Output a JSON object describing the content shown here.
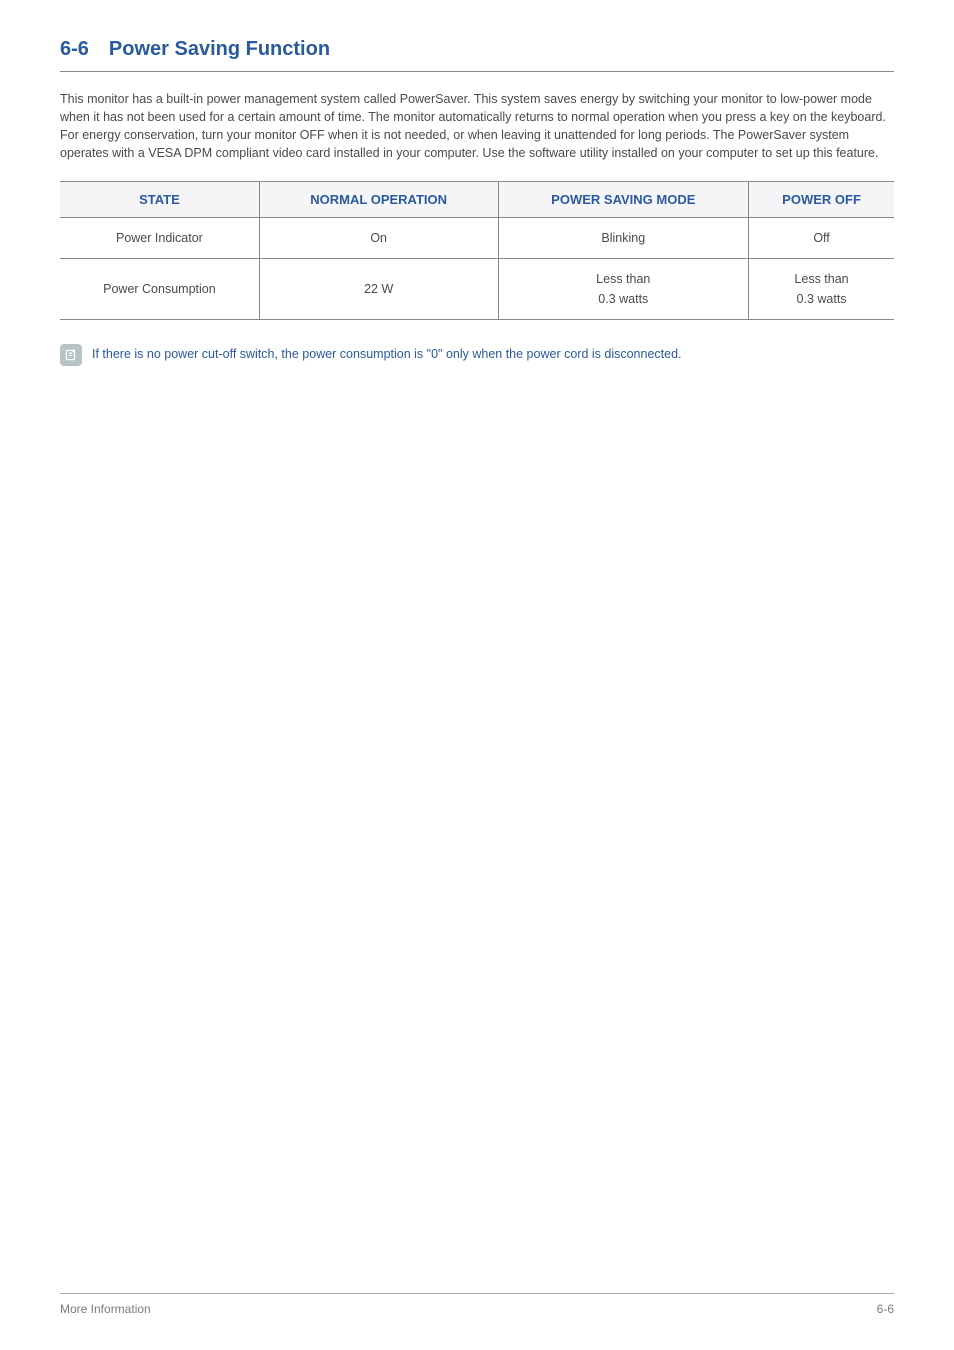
{
  "heading": {
    "number": "6-6",
    "title": "Power Saving Function"
  },
  "paragraph": "This monitor has a built-in power management system called PowerSaver. This system saves energy by switching your monitor to low-power mode when it has not been used for a certain amount of time. The monitor automatically returns to normal operation when you press a key on the keyboard. For energy conservation, turn your monitor OFF when it is not needed, or when leaving it unattended for long periods. The PowerSaver system operates with a VESA DPM compliant video card installed in your computer. Use the software utility installed on your computer to set up this feature.",
  "table": {
    "type": "table",
    "columns": [
      "STATE",
      "NORMAL OPERATION",
      "POWER SAVING MODE",
      "POWER OFF"
    ],
    "rows": [
      [
        "Power Indicator",
        "On",
        "Blinking",
        "Off"
      ],
      [
        "Power Consumption",
        "22 W",
        "Less than\n0.3 watts",
        "Less than\n0.3 watts"
      ]
    ],
    "header_bg": "#f5f5f7",
    "header_color": "#2a5a9e",
    "border_color": "#888888",
    "cell_color": "#4a4a4a",
    "header_fontsize": 13,
    "cell_fontsize": 12.5
  },
  "note": "If there is no power cut-off switch, the power consumption is \"0\" only when the power cord is disconnected.",
  "footer": {
    "left": "More Information",
    "right": "6-6"
  },
  "colors": {
    "heading": "#2a5a9e",
    "body_text": "#4a4a4a",
    "note_text": "#2a5a9e",
    "note_icon_bg": "#b8c4c4",
    "footer_text": "#7a7a7a",
    "rule": "#888888"
  }
}
